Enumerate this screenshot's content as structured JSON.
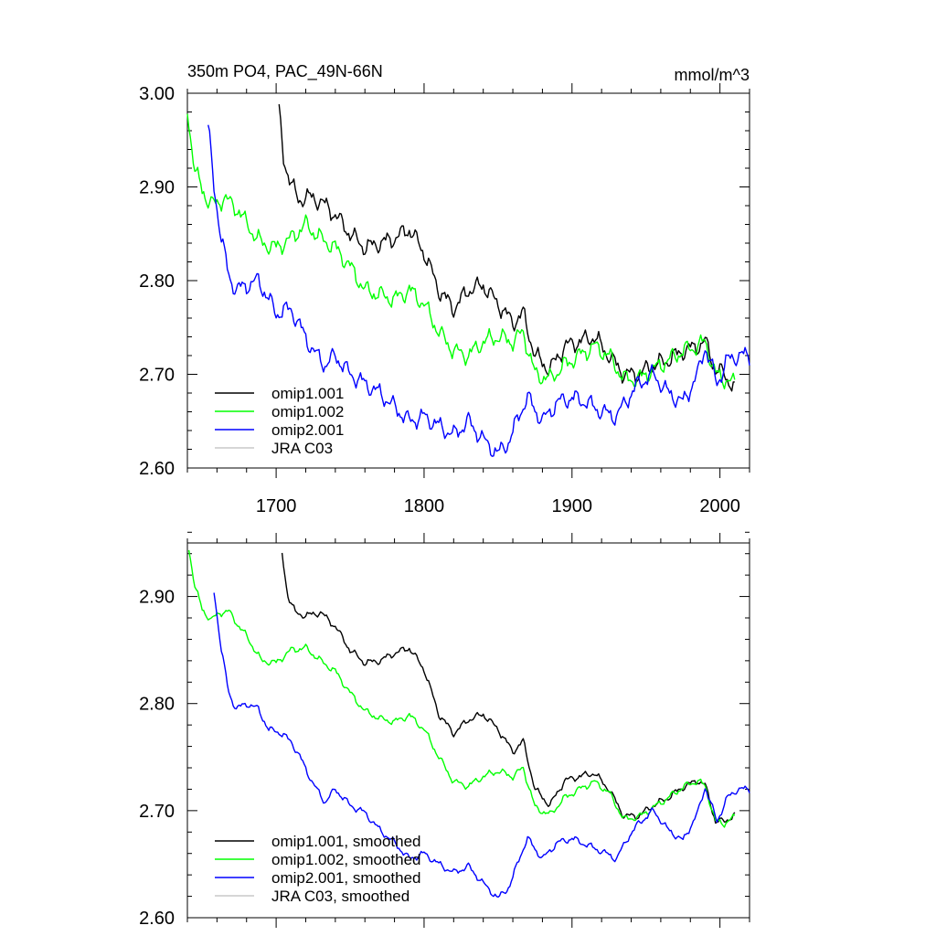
{
  "figure": {
    "title": "350m PO4, PAC_49N-66N",
    "units": "mmol/m^3"
  },
  "chart_data": [
    {
      "type": "line",
      "title": "350m PO4, PAC_49N-66N",
      "units": "mmol/m^3",
      "xlim": [
        1640,
        2020
      ],
      "ylim": [
        2.6,
        3.0
      ],
      "x_ticks": [
        1700,
        1800,
        1900,
        2000
      ],
      "x_tick_labels": [
        "1700",
        "1800",
        "1900",
        "2000"
      ],
      "y_ticks": [
        2.6,
        2.7,
        2.8,
        2.9,
        3.0
      ],
      "y_tick_labels": [
        "2.60",
        "2.70",
        "2.80",
        "2.90",
        "3.00"
      ],
      "legend_position": "bottom-left",
      "noise": 0.012,
      "series": [
        {
          "name": "omip1.001",
          "color": "#000000",
          "points": [
            [
              1702,
              2.98
            ],
            [
              1705,
              2.93
            ],
            [
              1710,
              2.905
            ],
            [
              1715,
              2.885
            ],
            [
              1720,
              2.89
            ],
            [
              1730,
              2.885
            ],
            [
              1740,
              2.87
            ],
            [
              1750,
              2.85
            ],
            [
              1760,
              2.835
            ],
            [
              1770,
              2.84
            ],
            [
              1780,
              2.845
            ],
            [
              1790,
              2.855
            ],
            [
              1800,
              2.83
            ],
            [
              1810,
              2.79
            ],
            [
              1820,
              2.77
            ],
            [
              1830,
              2.79
            ],
            [
              1840,
              2.795
            ],
            [
              1850,
              2.775
            ],
            [
              1860,
              2.755
            ],
            [
              1867,
              2.765
            ],
            [
              1875,
              2.72
            ],
            [
              1885,
              2.705
            ],
            [
              1895,
              2.73
            ],
            [
              1905,
              2.735
            ],
            [
              1915,
              2.74
            ],
            [
              1925,
              2.72
            ],
            [
              1935,
              2.7
            ],
            [
              1945,
              2.7
            ],
            [
              1955,
              2.71
            ],
            [
              1965,
              2.715
            ],
            [
              1975,
              2.725
            ],
            [
              1985,
              2.73
            ],
            [
              1990,
              2.735
            ],
            [
              1997,
              2.705
            ],
            [
              2003,
              2.7
            ],
            [
              2010,
              2.685
            ]
          ]
        },
        {
          "name": "omip1.002",
          "color": "#00ff00",
          "points": [
            [
              1640,
              2.98
            ],
            [
              1645,
              2.92
            ],
            [
              1650,
              2.895
            ],
            [
              1655,
              2.885
            ],
            [
              1660,
              2.88
            ],
            [
              1665,
              2.89
            ],
            [
              1670,
              2.88
            ],
            [
              1675,
              2.875
            ],
            [
              1680,
              2.86
            ],
            [
              1690,
              2.84
            ],
            [
              1700,
              2.835
            ],
            [
              1710,
              2.845
            ],
            [
              1720,
              2.86
            ],
            [
              1730,
              2.845
            ],
            [
              1740,
              2.835
            ],
            [
              1750,
              2.815
            ],
            [
              1760,
              2.79
            ],
            [
              1770,
              2.785
            ],
            [
              1780,
              2.78
            ],
            [
              1790,
              2.79
            ],
            [
              1800,
              2.775
            ],
            [
              1810,
              2.745
            ],
            [
              1820,
              2.725
            ],
            [
              1830,
              2.72
            ],
            [
              1840,
              2.735
            ],
            [
              1850,
              2.74
            ],
            [
              1860,
              2.735
            ],
            [
              1867,
              2.745
            ],
            [
              1875,
              2.7
            ],
            [
              1885,
              2.695
            ],
            [
              1895,
              2.71
            ],
            [
              1905,
              2.72
            ],
            [
              1915,
              2.73
            ],
            [
              1925,
              2.72
            ],
            [
              1935,
              2.695
            ],
            [
              1945,
              2.695
            ],
            [
              1955,
              2.705
            ],
            [
              1965,
              2.715
            ],
            [
              1975,
              2.725
            ],
            [
              1985,
              2.73
            ],
            [
              1990,
              2.735
            ],
            [
              1997,
              2.7
            ],
            [
              2003,
              2.695
            ],
            [
              2010,
              2.69
            ]
          ]
        },
        {
          "name": "omip2.001",
          "color": "#0000ff",
          "points": [
            [
              1654,
              2.965
            ],
            [
              1658,
              2.9
            ],
            [
              1663,
              2.845
            ],
            [
              1668,
              2.805
            ],
            [
              1673,
              2.79
            ],
            [
              1680,
              2.795
            ],
            [
              1688,
              2.8
            ],
            [
              1695,
              2.78
            ],
            [
              1700,
              2.765
            ],
            [
              1710,
              2.77
            ],
            [
              1718,
              2.745
            ],
            [
              1725,
              2.725
            ],
            [
              1733,
              2.71
            ],
            [
              1740,
              2.72
            ],
            [
              1750,
              2.7
            ],
            [
              1760,
              2.69
            ],
            [
              1770,
              2.68
            ],
            [
              1780,
              2.665
            ],
            [
              1790,
              2.65
            ],
            [
              1800,
              2.655
            ],
            [
              1810,
              2.645
            ],
            [
              1820,
              2.635
            ],
            [
              1830,
              2.65
            ],
            [
              1840,
              2.63
            ],
            [
              1850,
              2.615
            ],
            [
              1858,
              2.63
            ],
            [
              1865,
              2.66
            ],
            [
              1870,
              2.675
            ],
            [
              1880,
              2.65
            ],
            [
              1890,
              2.67
            ],
            [
              1900,
              2.675
            ],
            [
              1910,
              2.67
            ],
            [
              1920,
              2.66
            ],
            [
              1930,
              2.655
            ],
            [
              1938,
              2.675
            ],
            [
              1945,
              2.69
            ],
            [
              1955,
              2.7
            ],
            [
              1965,
              2.68
            ],
            [
              1975,
              2.67
            ],
            [
              1985,
              2.7
            ],
            [
              1990,
              2.73
            ],
            [
              1998,
              2.69
            ],
            [
              2005,
              2.715
            ],
            [
              2012,
              2.72
            ],
            [
              2020,
              2.72
            ]
          ]
        },
        {
          "name": "JRA C03",
          "color": "#c8c8c8",
          "points": []
        }
      ]
    },
    {
      "type": "line",
      "xlim": [
        1640,
        2020
      ],
      "ylim": [
        2.6,
        2.95
      ],
      "x_ticks": [
        1700,
        1800,
        1900,
        2000
      ],
      "x_tick_labels": [
        "",
        "",
        "",
        ""
      ],
      "y_ticks": [
        2.6,
        2.7,
        2.8,
        2.9
      ],
      "y_tick_labels": [
        "2.60",
        "2.70",
        "2.80",
        "2.90"
      ],
      "legend_position": "bottom-left",
      "noise": 0.004,
      "series": [
        {
          "name": "omip1.001, smoothed",
          "color": "#000000",
          "points": [
            [
              1704,
              2.94
            ],
            [
              1708,
              2.9
            ],
            [
              1713,
              2.885
            ],
            [
              1720,
              2.882
            ],
            [
              1730,
              2.885
            ],
            [
              1740,
              2.872
            ],
            [
              1750,
              2.85
            ],
            [
              1760,
              2.838
            ],
            [
              1770,
              2.84
            ],
            [
              1780,
              2.847
            ],
            [
              1790,
              2.852
            ],
            [
              1800,
              2.832
            ],
            [
              1810,
              2.79
            ],
            [
              1820,
              2.772
            ],
            [
              1830,
              2.785
            ],
            [
              1840,
              2.79
            ],
            [
              1850,
              2.776
            ],
            [
              1860,
              2.755
            ],
            [
              1867,
              2.765
            ],
            [
              1875,
              2.72
            ],
            [
              1885,
              2.705
            ],
            [
              1895,
              2.728
            ],
            [
              1905,
              2.732
            ],
            [
              1915,
              2.735
            ],
            [
              1925,
              2.72
            ],
            [
              1935,
              2.695
            ],
            [
              1945,
              2.695
            ],
            [
              1955,
              2.705
            ],
            [
              1965,
              2.712
            ],
            [
              1975,
              2.722
            ],
            [
              1985,
              2.728
            ],
            [
              1990,
              2.724
            ],
            [
              1997,
              2.69
            ],
            [
              2003,
              2.69
            ],
            [
              2010,
              2.696
            ]
          ]
        },
        {
          "name": "omip1.002, smoothed",
          "color": "#00ff00",
          "points": [
            [
              1641,
              2.945
            ],
            [
              1645,
              2.91
            ],
            [
              1650,
              2.888
            ],
            [
              1656,
              2.878
            ],
            [
              1662,
              2.885
            ],
            [
              1668,
              2.886
            ],
            [
              1675,
              2.872
            ],
            [
              1680,
              2.863
            ],
            [
              1690,
              2.84
            ],
            [
              1700,
              2.838
            ],
            [
              1710,
              2.85
            ],
            [
              1720,
              2.852
            ],
            [
              1730,
              2.84
            ],
            [
              1740,
              2.83
            ],
            [
              1750,
              2.81
            ],
            [
              1760,
              2.793
            ],
            [
              1770,
              2.786
            ],
            [
              1780,
              2.783
            ],
            [
              1790,
              2.789
            ],
            [
              1800,
              2.776
            ],
            [
              1810,
              2.75
            ],
            [
              1820,
              2.727
            ],
            [
              1830,
              2.723
            ],
            [
              1840,
              2.732
            ],
            [
              1850,
              2.737
            ],
            [
              1860,
              2.732
            ],
            [
              1867,
              2.74
            ],
            [
              1875,
              2.703
            ],
            [
              1885,
              2.696
            ],
            [
              1895,
              2.712
            ],
            [
              1905,
              2.72
            ],
            [
              1915,
              2.727
            ],
            [
              1925,
              2.717
            ],
            [
              1935,
              2.692
            ],
            [
              1945,
              2.694
            ],
            [
              1955,
              2.703
            ],
            [
              1965,
              2.712
            ],
            [
              1975,
              2.722
            ],
            [
              1985,
              2.728
            ],
            [
              1990,
              2.723
            ],
            [
              1997,
              2.69
            ],
            [
              2003,
              2.688
            ],
            [
              2010,
              2.694
            ]
          ]
        },
        {
          "name": "omip2.001, smoothed",
          "color": "#0000ff",
          "points": [
            [
              1658,
              2.905
            ],
            [
              1663,
              2.85
            ],
            [
              1668,
              2.81
            ],
            [
              1673,
              2.795
            ],
            [
              1680,
              2.8
            ],
            [
              1688,
              2.795
            ],
            [
              1695,
              2.775
            ],
            [
              1700,
              2.775
            ],
            [
              1710,
              2.765
            ],
            [
              1718,
              2.745
            ],
            [
              1725,
              2.725
            ],
            [
              1733,
              2.708
            ],
            [
              1740,
              2.72
            ],
            [
              1750,
              2.705
            ],
            [
              1760,
              2.698
            ],
            [
              1770,
              2.682
            ],
            [
              1780,
              2.67
            ],
            [
              1790,
              2.655
            ],
            [
              1800,
              2.66
            ],
            [
              1810,
              2.65
            ],
            [
              1820,
              2.642
            ],
            [
              1830,
              2.648
            ],
            [
              1840,
              2.632
            ],
            [
              1850,
              2.618
            ],
            [
              1858,
              2.63
            ],
            [
              1865,
              2.658
            ],
            [
              1870,
              2.674
            ],
            [
              1880,
              2.655
            ],
            [
              1890,
              2.67
            ],
            [
              1900,
              2.674
            ],
            [
              1910,
              2.668
            ],
            [
              1920,
              2.662
            ],
            [
              1930,
              2.655
            ],
            [
              1938,
              2.675
            ],
            [
              1945,
              2.688
            ],
            [
              1955,
              2.7
            ],
            [
              1965,
              2.682
            ],
            [
              1975,
              2.672
            ],
            [
              1985,
              2.698
            ],
            [
              1990,
              2.722
            ],
            [
              1998,
              2.69
            ],
            [
              2005,
              2.712
            ],
            [
              2012,
              2.72
            ],
            [
              2020,
              2.72
            ]
          ]
        },
        {
          "name": "JRA C03, smoothed",
          "color": "#c8c8c8",
          "points": []
        }
      ]
    }
  ]
}
